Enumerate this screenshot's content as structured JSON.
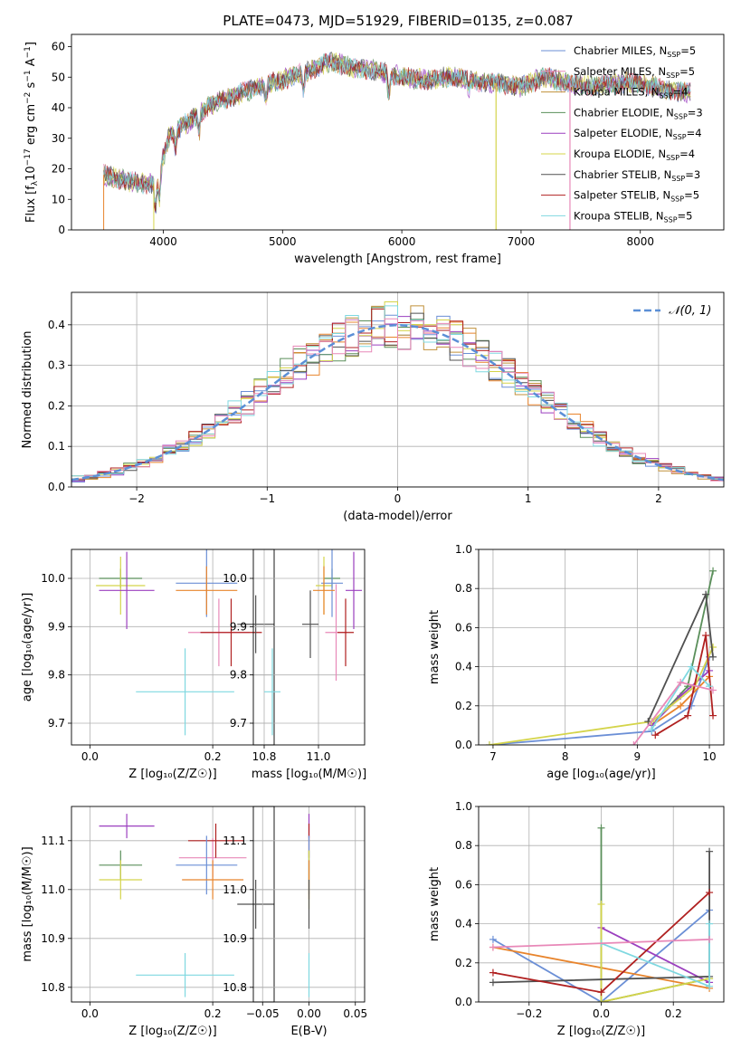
{
  "figure": {
    "title": "PLATE=0473, MJD=51929, FIBERID=0135, z=0.087"
  },
  "colors": {
    "c1": "#6b8fd6",
    "c2": "#e8842c",
    "c3": "#c0903a",
    "c4": "#5a8f5a",
    "c5": "#9b3fbf",
    "c6": "#d4d44a",
    "c7": "#505050",
    "c8": "#b02020",
    "c9": "#7fd8e0",
    "c10": "#e888b8",
    "gauss": "#5b8fd6",
    "grid": "#b0b0b0"
  },
  "chart_data": [
    {
      "id": "spectrum",
      "type": "line",
      "xlabel": "wavelength [Angstrom, rest frame]",
      "ylabel": "Flux [f_λ 10^-17 erg cm^-2 s^-1 A^-1]",
      "ylabel_parts": [
        "Flux [f",
        "λ",
        "10",
        "−17",
        " erg cm",
        "−2",
        " s",
        "−1",
        " A",
        "−1",
        "]"
      ],
      "xlim": [
        3230,
        8700
      ],
      "ylim": [
        0,
        64
      ],
      "xticks": [
        4000,
        5000,
        6000,
        7000,
        8000
      ],
      "yticks": [
        0,
        10,
        20,
        30,
        40,
        50,
        60
      ],
      "grid": false,
      "legend_position": "upper-right",
      "series": [
        {
          "name": "Chabrier MILES, N",
          "sub": "SSP",
          "suffix": "=5",
          "color_key": "c1"
        },
        {
          "name": "Salpeter MILES, N",
          "sub": "SSP",
          "suffix": "=5",
          "color_key": "c10"
        },
        {
          "name": "Kroupa MILES, N",
          "sub": "SSP",
          "suffix": "=4",
          "color_key": "c3"
        },
        {
          "name": "Chabrier ELODIE, N",
          "sub": "SSP",
          "suffix": "=3",
          "color_key": "c4"
        },
        {
          "name": "Salpeter ELODIE, N",
          "sub": "SSP",
          "suffix": "=4",
          "color_key": "c5"
        },
        {
          "name": "Kroupa ELODIE, N",
          "sub": "SSP",
          "suffix": "=4",
          "color_key": "c6"
        },
        {
          "name": "Chabrier STELIB, N",
          "sub": "SSP",
          "suffix": "=3",
          "color_key": "c7"
        },
        {
          "name": "Salpeter STELIB, N",
          "sub": "SSP",
          "suffix": "=5",
          "color_key": "c8"
        },
        {
          "name": "Kroupa STELIB, N",
          "sub": "SSP",
          "suffix": "=5",
          "color_key": "c9"
        }
      ],
      "continuum": [
        [
          3500,
          18
        ],
        [
          3700,
          16
        ],
        [
          3850,
          15
        ],
        [
          3950,
          16
        ],
        [
          4050,
          31
        ],
        [
          4200,
          35
        ],
        [
          4400,
          41
        ],
        [
          4600,
          44
        ],
        [
          4800,
          47
        ],
        [
          5000,
          49
        ],
        [
          5200,
          52
        ],
        [
          5400,
          55
        ],
        [
          5600,
          53
        ],
        [
          5800,
          52
        ],
        [
          6000,
          50
        ],
        [
          6200,
          49
        ],
        [
          6400,
          50
        ],
        [
          6600,
          49
        ],
        [
          6800,
          48
        ],
        [
          7000,
          47
        ],
        [
          7200,
          50
        ],
        [
          7400,
          48
        ],
        [
          7600,
          47
        ],
        [
          7800,
          48
        ],
        [
          8000,
          48
        ],
        [
          8200,
          46
        ],
        [
          8400,
          45
        ]
      ],
      "spikes": [
        {
          "x": 6790,
          "series_index": 5
        },
        {
          "x": 7410,
          "series_index": 1
        }
      ]
    },
    {
      "id": "residuals",
      "type": "histogram",
      "xlabel": "(data-model)/error",
      "ylabel": "Normed distribution",
      "xlim": [
        -2.5,
        2.5
      ],
      "ylim": [
        0,
        0.48
      ],
      "xticks": [
        -2,
        -1,
        0,
        1,
        2
      ],
      "xtick_labels": [
        "−2",
        "−1",
        "0",
        "1",
        "2"
      ],
      "yticks": [
        0.0,
        0.1,
        0.2,
        0.3,
        0.4
      ],
      "ytick_labels": [
        "0.0",
        "0.1",
        "0.2",
        "0.3",
        "0.4"
      ],
      "grid": true,
      "legend_position": "upper-right",
      "legend": "𝒩(0, 1)",
      "bin_width": 0.1,
      "bin_start": -2.5
    },
    {
      "id": "age-vs-z",
      "type": "errorbar",
      "xlabel": "Z [log₁₀(Z/Z☉)]",
      "ylabel": "age  [log₁₀(age/yr)]",
      "xlim": [
        -0.03,
        0.3
      ],
      "ylim": [
        9.655,
        10.06
      ],
      "xticks": [
        0.0,
        0.2
      ],
      "xtick_labels": [
        "0.0",
        "0.2"
      ],
      "yticks": [
        9.7,
        9.8,
        9.9,
        10.0
      ],
      "ytick_labels": [
        "9.7",
        "9.8",
        "9.9",
        "10.0"
      ],
      "grid": true,
      "points": [
        {
          "x": 0.05,
          "y": 10.0,
          "xerr": 0.035,
          "yerr": 0.02,
          "color_key": "c4"
        },
        {
          "x": 0.05,
          "y": 9.985,
          "xerr": 0.04,
          "yerr": 0.06,
          "color_key": "c6"
        },
        {
          "x": 0.06,
          "y": 9.975,
          "xerr": 0.045,
          "yerr": 0.08,
          "color_key": "c5"
        },
        {
          "x": 0.19,
          "y": 9.99,
          "xerr": 0.05,
          "yerr": 0.07,
          "color_key": "c1"
        },
        {
          "x": 0.19,
          "y": 9.975,
          "xerr": 0.05,
          "yerr": 0.05,
          "color_key": "c2"
        },
        {
          "x": 0.21,
          "y": 9.888,
          "xerr": 0.05,
          "yerr": 0.07,
          "color_key": "c10"
        },
        {
          "x": 0.23,
          "y": 9.888,
          "xerr": 0.05,
          "yerr": 0.07,
          "color_key": "c8"
        },
        {
          "x": 0.27,
          "y": 9.905,
          "xerr": 0.03,
          "yerr": 0.06,
          "color_key": "c7"
        },
        {
          "x": 0.155,
          "y": 9.765,
          "xerr": 0.08,
          "yerr": 0.09,
          "color_key": "c9"
        }
      ]
    },
    {
      "id": "age-vs-mass",
      "type": "errorbar",
      "xlabel": "mass [log₁₀(M/M☉)]",
      "ylabel": "",
      "xlim": [
        10.76,
        11.17
      ],
      "ylim": [
        9.655,
        10.06
      ],
      "xticks": [
        10.8,
        11.0
      ],
      "xtick_labels": [
        "10.8",
        "11.0"
      ],
      "yticks": [
        9.7,
        9.8,
        9.9,
        10.0
      ],
      "ytick_labels": [
        "9.7",
        "9.8",
        "9.9",
        "10.0"
      ],
      "grid": true,
      "points": [
        {
          "x": 11.05,
          "y": 10.0,
          "xerr": 0.03,
          "yerr": 0.02,
          "color_key": "c4"
        },
        {
          "x": 11.02,
          "y": 9.985,
          "xerr": 0.03,
          "yerr": 0.06,
          "color_key": "c6"
        },
        {
          "x": 11.13,
          "y": 9.975,
          "xerr": 0.03,
          "yerr": 0.08,
          "color_key": "c5"
        },
        {
          "x": 11.05,
          "y": 9.99,
          "xerr": 0.04,
          "yerr": 0.07,
          "color_key": "c1"
        },
        {
          "x": 11.02,
          "y": 9.975,
          "xerr": 0.04,
          "yerr": 0.05,
          "color_key": "c2"
        },
        {
          "x": 11.065,
          "y": 9.888,
          "xerr": 0.04,
          "yerr": 0.1,
          "color_key": "c10"
        },
        {
          "x": 11.1,
          "y": 9.888,
          "xerr": 0.03,
          "yerr": 0.07,
          "color_key": "c8"
        },
        {
          "x": 10.97,
          "y": 9.905,
          "xerr": 0.03,
          "yerr": 0.07,
          "color_key": "c7"
        },
        {
          "x": 10.83,
          "y": 9.765,
          "xerr": 0.03,
          "yerr": 0.09,
          "color_key": "c9"
        }
      ]
    },
    {
      "id": "mass-weight-vs-age",
      "type": "line",
      "xlabel": "age  [log₁₀(age/yr)]",
      "ylabel": "mass weight",
      "xlim": [
        6.8,
        10.2
      ],
      "ylim": [
        0,
        1.0
      ],
      "xticks": [
        7,
        8,
        9,
        10
      ],
      "xtick_labels": [
        "7",
        "8",
        "9",
        "10"
      ],
      "yticks": [
        0.0,
        0.2,
        0.4,
        0.6,
        0.8,
        1.0
      ],
      "ytick_labels": [
        "0.0",
        "0.2",
        "0.4",
        "0.6",
        "0.8",
        "1.0"
      ],
      "grid": true,
      "series": [
        {
          "color_key": "c1",
          "x": [
            6.95,
            9.2,
            9.75,
            10.0
          ],
          "y": [
            0.0,
            0.07,
            0.2,
            0.45
          ]
        },
        {
          "color_key": "c2",
          "x": [
            9.2,
            9.6,
            10.0
          ],
          "y": [
            0.1,
            0.2,
            0.35
          ]
        },
        {
          "color_key": "c4",
          "x": [
            9.2,
            9.7,
            10.05
          ],
          "y": [
            0.1,
            0.3,
            0.89
          ]
        },
        {
          "color_key": "c5",
          "x": [
            9.2,
            9.6,
            10.0
          ],
          "y": [
            0.1,
            0.25,
            0.38
          ]
        },
        {
          "color_key": "c6",
          "x": [
            6.95,
            9.2,
            9.8,
            10.05
          ],
          "y": [
            0.0,
            0.12,
            0.3,
            0.5
          ]
        },
        {
          "color_key": "c7",
          "x": [
            9.15,
            9.95,
            10.05
          ],
          "y": [
            0.12,
            0.77,
            0.45
          ]
        },
        {
          "color_key": "c8",
          "x": [
            9.25,
            9.7,
            9.95,
            10.05
          ],
          "y": [
            0.05,
            0.15,
            0.56,
            0.15
          ]
        },
        {
          "color_key": "c9",
          "x": [
            9.2,
            9.75,
            10.0
          ],
          "y": [
            0.08,
            0.4,
            0.3
          ]
        },
        {
          "color_key": "c10",
          "x": [
            8.95,
            9.6,
            10.05
          ],
          "y": [
            0.0,
            0.32,
            0.28
          ]
        }
      ]
    },
    {
      "id": "mass-vs-z",
      "type": "errorbar",
      "xlabel": "Z [log₁₀(Z/Z☉)]",
      "ylabel": "mass [log₁₀(M/M☉)]",
      "xlim": [
        -0.03,
        0.3
      ],
      "ylim": [
        10.77,
        11.17
      ],
      "xticks": [
        0.0,
        0.2
      ],
      "xtick_labels": [
        "0.0",
        "0.2"
      ],
      "yticks": [
        10.8,
        10.9,
        11.0,
        11.1
      ],
      "ytick_labels": [
        "10.8",
        "10.9",
        "11.0",
        "11.1"
      ],
      "grid": true,
      "points": [
        {
          "x": 0.06,
          "y": 11.13,
          "xerr": 0.045,
          "yerr": 0.025,
          "color_key": "c5"
        },
        {
          "x": 0.05,
          "y": 11.05,
          "xerr": 0.035,
          "yerr": 0.03,
          "color_key": "c4"
        },
        {
          "x": 0.05,
          "y": 11.02,
          "xerr": 0.035,
          "yerr": 0.04,
          "color_key": "c6"
        },
        {
          "x": 0.2,
          "y": 11.065,
          "xerr": 0.055,
          "yerr": 0.04,
          "color_key": "c10"
        },
        {
          "x": 0.205,
          "y": 11.1,
          "xerr": 0.045,
          "yerr": 0.035,
          "color_key": "c8"
        },
        {
          "x": 0.19,
          "y": 11.05,
          "xerr": 0.05,
          "yerr": 0.06,
          "color_key": "c1"
        },
        {
          "x": 0.2,
          "y": 11.02,
          "xerr": 0.05,
          "yerr": 0.04,
          "color_key": "c2"
        },
        {
          "x": 0.27,
          "y": 10.97,
          "xerr": 0.03,
          "yerr": 0.05,
          "color_key": "c7"
        },
        {
          "x": 0.155,
          "y": 10.825,
          "xerr": 0.08,
          "yerr": 0.045,
          "color_key": "c9"
        }
      ]
    },
    {
      "id": "mass-vs-ebv",
      "type": "errorbar",
      "xlabel": "E(B-V)",
      "ylabel": "",
      "xlim": [
        -0.06,
        0.06
      ],
      "ylim": [
        10.77,
        11.17
      ],
      "xticks": [
        -0.05,
        0.0,
        0.05
      ],
      "xtick_labels": [
        "−0.05",
        "0.00",
        "0.05"
      ],
      "yticks": [
        10.8,
        10.9,
        11.0,
        11.1
      ],
      "ytick_labels": [
        "10.8",
        "10.9",
        "11.0",
        "11.1"
      ],
      "grid": true,
      "points": [
        {
          "x": 0.0,
          "y": 11.13,
          "xerr": 0.0,
          "yerr": 0.025,
          "color_key": "c5"
        },
        {
          "x": 0.0,
          "y": 11.1,
          "xerr": 0.0,
          "yerr": 0.035,
          "color_key": "c8"
        },
        {
          "x": 0.0,
          "y": 11.05,
          "xerr": 0.0,
          "yerr": 0.03,
          "color_key": "c4"
        },
        {
          "x": 0.0,
          "y": 11.05,
          "xerr": 0.0,
          "yerr": 0.06,
          "color_key": "c1"
        },
        {
          "x": 0.0,
          "y": 11.02,
          "xerr": 0.0,
          "yerr": 0.06,
          "color_key": "c6"
        },
        {
          "x": 0.0,
          "y": 11.02,
          "xerr": 0.0,
          "yerr": 0.04,
          "color_key": "c2"
        },
        {
          "x": 0.0,
          "y": 10.97,
          "xerr": 0.0,
          "yerr": 0.05,
          "color_key": "c7"
        },
        {
          "x": 0.0,
          "y": 10.825,
          "xerr": 0.0,
          "yerr": 0.045,
          "color_key": "c9"
        }
      ]
    },
    {
      "id": "mass-weight-vs-z",
      "type": "line",
      "xlabel": "Z [log₁₀(Z/Z☉)]",
      "ylabel": "mass weight",
      "xlim": [
        -0.34,
        0.34
      ],
      "ylim": [
        0,
        1.0
      ],
      "xticks": [
        -0.2,
        0.0,
        0.2
      ],
      "xtick_labels": [
        "−0.2",
        "0.0",
        "0.2"
      ],
      "yticks": [
        0.0,
        0.2,
        0.4,
        0.6,
        0.8,
        1.0
      ],
      "ytick_labels": [
        "0.0",
        "0.2",
        "0.4",
        "0.6",
        "0.8",
        "1.0"
      ],
      "grid": true,
      "series": [
        {
          "color_key": "c1",
          "x": [
            -0.3,
            0.0,
            0.3
          ],
          "y": [
            0.32,
            0.0,
            0.47
          ]
        },
        {
          "color_key": "c2",
          "x": [
            -0.3,
            0.3
          ],
          "y": [
            0.28,
            0.07
          ]
        },
        {
          "color_key": "c4",
          "x": [
            0.0,
            0.0,
            0.3
          ],
          "y": [
            0.89,
            0.0,
            0.12
          ]
        },
        {
          "color_key": "c5",
          "x": [
            0.0,
            0.3
          ],
          "y": [
            0.38,
            0.1
          ]
        },
        {
          "color_key": "c6",
          "x": [
            0.0,
            0.0,
            0.3
          ],
          "y": [
            0.5,
            0.0,
            0.12
          ]
        },
        {
          "color_key": "c7",
          "x": [
            -0.3,
            0.3,
            0.3
          ],
          "y": [
            0.1,
            0.13,
            0.77
          ]
        },
        {
          "color_key": "c8",
          "x": [
            -0.3,
            0.0,
            0.3
          ],
          "y": [
            0.15,
            0.05,
            0.56
          ]
        },
        {
          "color_key": "c9",
          "x": [
            0.0,
            0.3,
            0.3
          ],
          "y": [
            0.3,
            0.08,
            0.4
          ]
        },
        {
          "color_key": "c10",
          "x": [
            -0.3,
            0.3
          ],
          "y": [
            0.28,
            0.32
          ]
        }
      ]
    }
  ]
}
